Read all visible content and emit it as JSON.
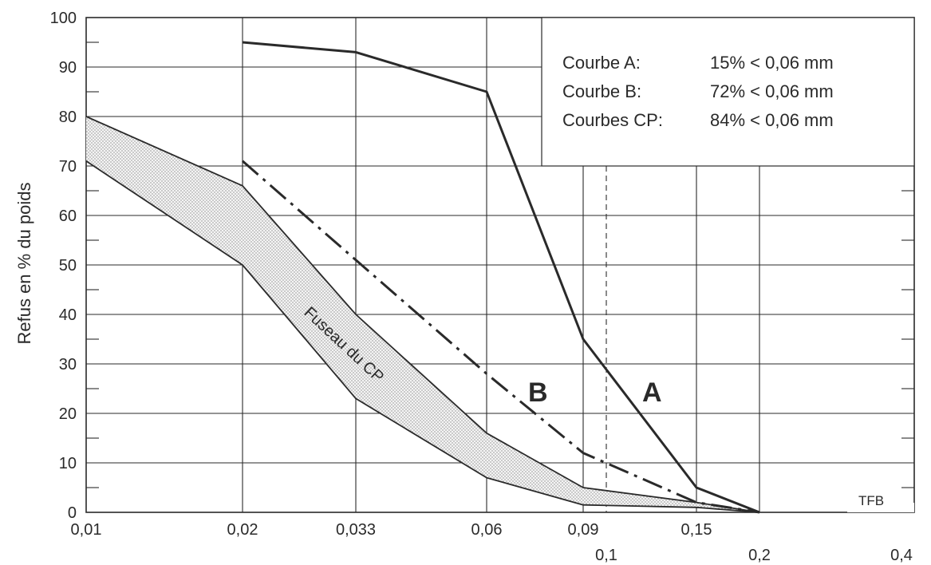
{
  "chart_data": {
    "type": "line",
    "title": "",
    "xlabel": "",
    "ylabel": "Refus en % du poids",
    "x_ticks_row1": [
      "0,01",
      "0,02",
      "0,033",
      "0,06",
      "0,09",
      "0,15"
    ],
    "x_ticks_row2": [
      "0,1",
      "0,2",
      "0,4"
    ],
    "y_ticks": [
      "0",
      "10",
      "20",
      "30",
      "40",
      "50",
      "60",
      "70",
      "80",
      "90",
      "100"
    ],
    "ylim": [
      0,
      100
    ],
    "grid": true,
    "series": [
      {
        "name": "A",
        "x": [
          0.02,
          0.033,
          0.06,
          0.09,
          0.15,
          0.2
        ],
        "y": [
          95,
          93,
          85,
          35,
          5,
          0
        ]
      },
      {
        "name": "B",
        "x": [
          0.02,
          0.033,
          0.06,
          0.09,
          0.15,
          0.2
        ],
        "y": [
          71,
          51,
          28,
          12,
          2,
          0
        ]
      },
      {
        "name": "Fuseau du CP (limite supérieure)",
        "x": [
          0.01,
          0.02,
          0.033,
          0.06,
          0.09,
          0.15,
          0.2
        ],
        "y": [
          80,
          66,
          40,
          16,
          5,
          2,
          0
        ]
      },
      {
        "name": "Fuseau du CP (limite inférieure)",
        "x": [
          0.01,
          0.02,
          0.033,
          0.06,
          0.09,
          0.15,
          0.2
        ],
        "y": [
          71,
          50,
          23,
          7,
          1.5,
          1,
          0
        ]
      }
    ],
    "legend": [
      {
        "label": "Courbe A:",
        "value": "15% < 0,06 mm"
      },
      {
        "label": "Courbe B:",
        "value": "72% < 0,06 mm"
      },
      {
        "label": "Courbes CP:",
        "value": "84% < 0,06 mm"
      }
    ],
    "annotations": {
      "curve_a": "A",
      "curve_b": "B",
      "band": "Fuseau du CP",
      "credit": "TFB"
    }
  }
}
